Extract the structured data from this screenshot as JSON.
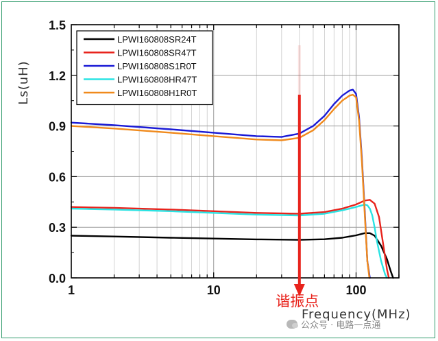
{
  "chart_data": {
    "type": "line",
    "title": "",
    "xlabel": "Frequency(MHz)",
    "ylabel": "Ls(uH)",
    "xscale": "log",
    "xlim": [
      1,
      200
    ],
    "ylim": [
      0,
      1.5
    ],
    "x_ticks": [
      "1",
      "10",
      "100"
    ],
    "y_ticks": [
      "0.0",
      "0.3",
      "0.6",
      "0.9",
      "1.2",
      "1.5"
    ],
    "grid": "on",
    "legend_position": "top-left",
    "annotation": {
      "text": "谐振点",
      "x": 40,
      "color": "#e8231c"
    },
    "series": [
      {
        "name": "LPWI160808SR24T",
        "color": "#000000",
        "x": [
          1,
          2,
          5,
          10,
          20,
          40,
          60,
          80,
          100,
          115,
          125,
          135,
          150,
          165,
          175,
          182
        ],
        "y": [
          0.25,
          0.245,
          0.238,
          0.233,
          0.228,
          0.225,
          0.229,
          0.238,
          0.252,
          0.265,
          0.265,
          0.25,
          0.19,
          0.11,
          0.04,
          0.0
        ]
      },
      {
        "name": "LPWI160808SR47T",
        "color": "#e8231c",
        "x": [
          1,
          2,
          5,
          10,
          20,
          40,
          60,
          80,
          100,
          115,
          125,
          135,
          145,
          155,
          165,
          170
        ],
        "y": [
          0.42,
          0.415,
          0.405,
          0.395,
          0.385,
          0.38,
          0.39,
          0.41,
          0.435,
          0.458,
          0.462,
          0.44,
          0.36,
          0.2,
          0.05,
          0.0
        ]
      },
      {
        "name": "LPWI160808S1R0T",
        "color": "#1a1ad6",
        "x": [
          1,
          2,
          5,
          10,
          20,
          30,
          40,
          50,
          60,
          70,
          80,
          90,
          95,
          100,
          105,
          110,
          115,
          120,
          125
        ],
        "y": [
          0.92,
          0.905,
          0.88,
          0.86,
          0.84,
          0.835,
          0.855,
          0.9,
          0.96,
          1.03,
          1.08,
          1.11,
          1.115,
          1.09,
          0.95,
          0.7,
          0.4,
          0.1,
          0.0
        ]
      },
      {
        "name": "LPWI160808HR47T",
        "color": "#29e3e3",
        "x": [
          1,
          2,
          5,
          10,
          20,
          40,
          60,
          80,
          100,
          110,
          115,
          120,
          125,
          130,
          135,
          140,
          150,
          160,
          165
        ],
        "y": [
          0.41,
          0.405,
          0.395,
          0.385,
          0.375,
          0.37,
          0.38,
          0.4,
          0.42,
          0.43,
          0.435,
          0.43,
          0.41,
          0.37,
          0.3,
          0.22,
          0.1,
          0.02,
          0.0
        ]
      },
      {
        "name": "LPWI160808H1R0T",
        "color": "#f08a1c",
        "x": [
          1,
          2,
          5,
          10,
          20,
          30,
          40,
          50,
          60,
          70,
          80,
          90,
          95,
          100,
          105,
          110,
          115,
          120,
          124
        ],
        "y": [
          0.9,
          0.885,
          0.86,
          0.84,
          0.82,
          0.815,
          0.83,
          0.875,
          0.935,
          1.0,
          1.05,
          1.08,
          1.085,
          1.07,
          0.93,
          0.68,
          0.38,
          0.1,
          0.0
        ]
      }
    ]
  },
  "watermark": {
    "text": "公众号 · 电路一点通",
    "icon": "wechat-icon"
  }
}
